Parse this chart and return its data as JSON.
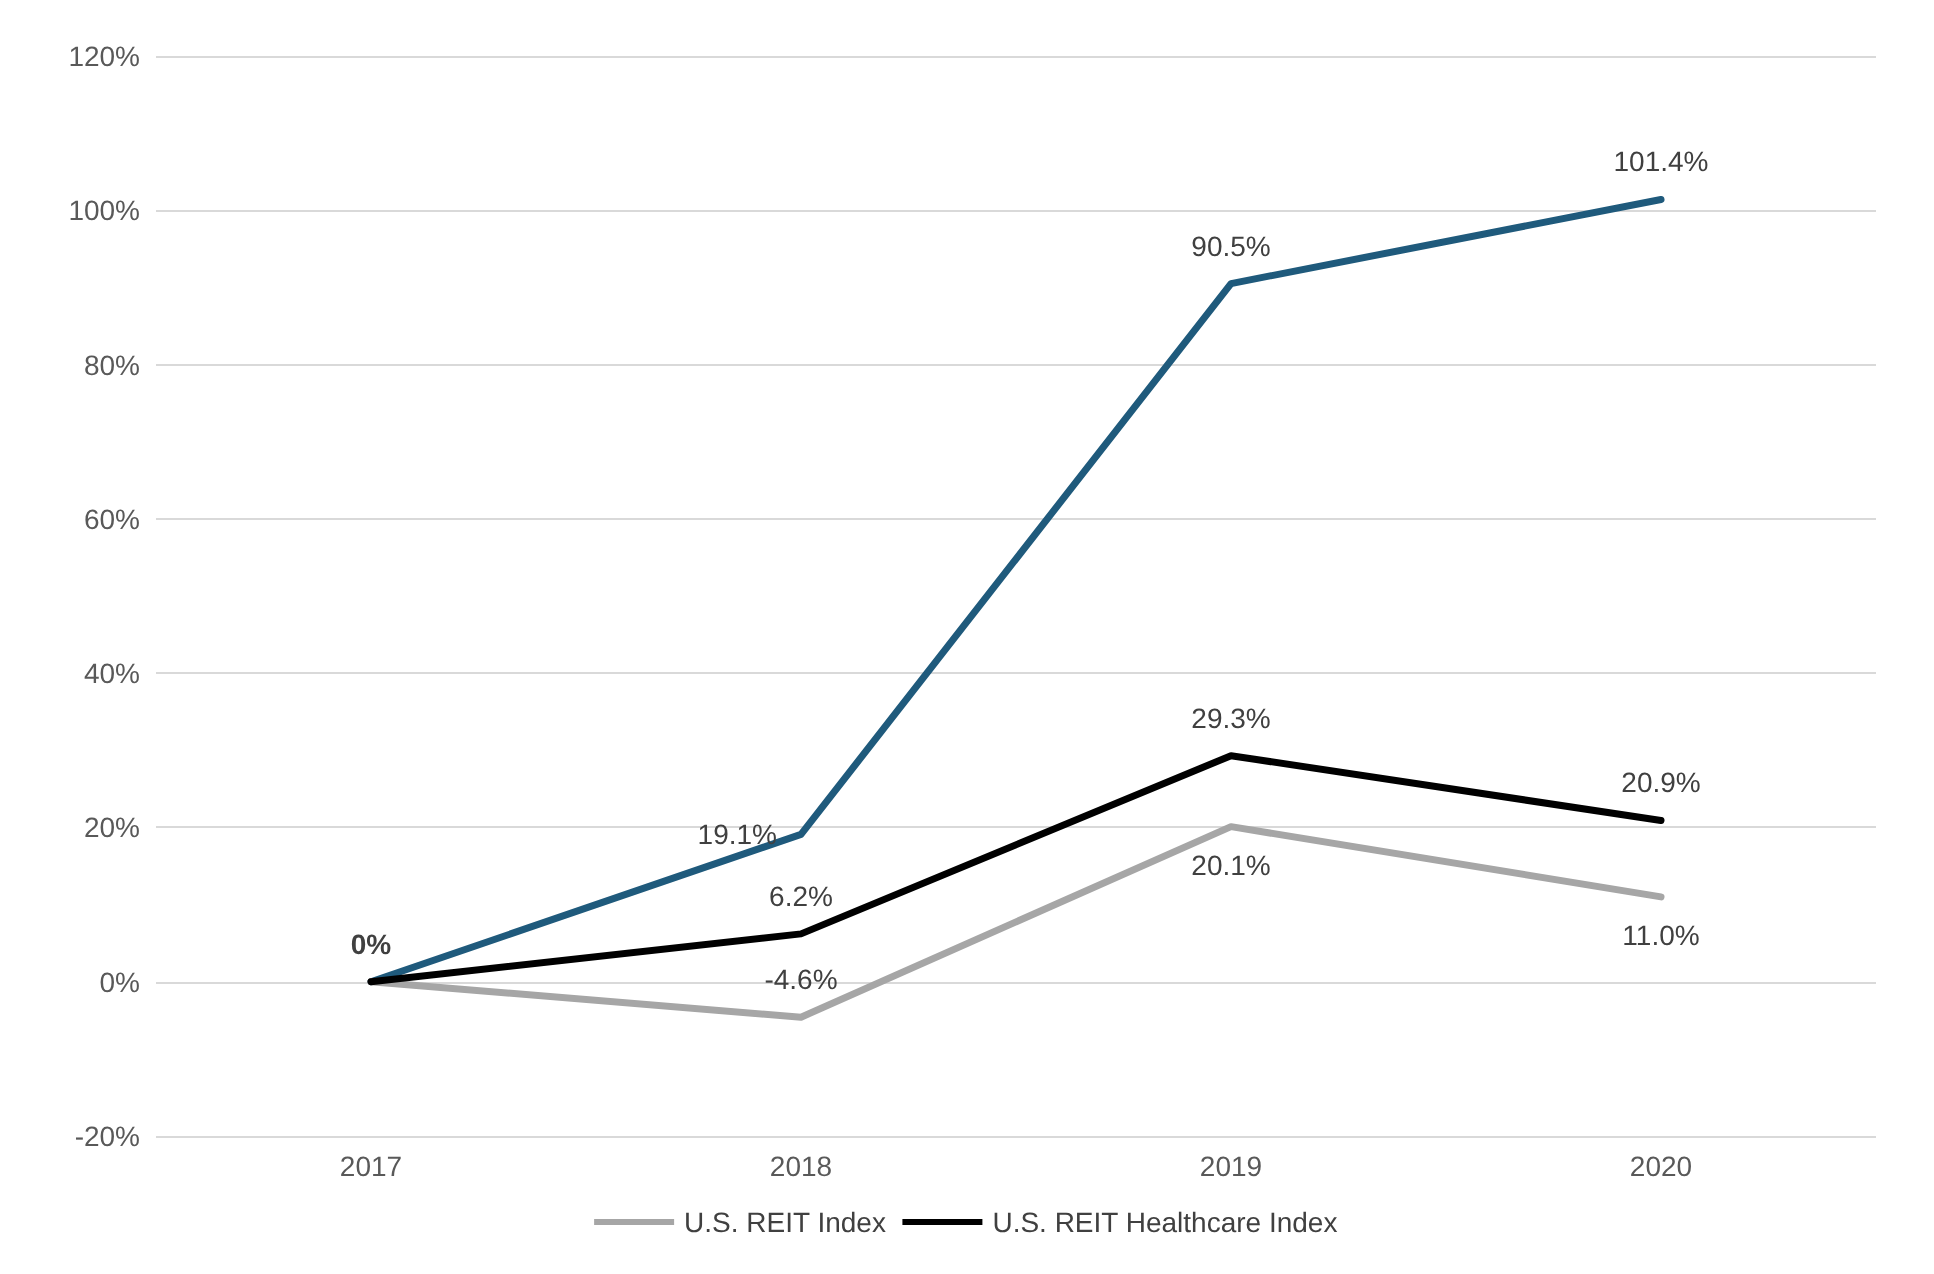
{
  "chart_data": {
    "type": "line",
    "categories": [
      "2017",
      "2018",
      "2019",
      "2020"
    ],
    "series": [
      {
        "color": "#1f5a7c",
        "values": [
          0,
          19.1,
          90.5,
          101.4
        ],
        "value_labels": [
          "0%",
          "19.1%",
          "90.5%",
          "101.4%"
        ]
      },
      {
        "name": "U.S. REIT Index",
        "color": "#a6a6a6",
        "values": [
          0,
          -4.6,
          20.1,
          11.0
        ],
        "value_labels": [
          null,
          "-4.6%",
          "20.1%",
          "11.0%"
        ]
      },
      {
        "name": "U.S. REIT Healthcare Index",
        "color": "#000000",
        "values": [
          0,
          6.2,
          29.3,
          20.9
        ],
        "value_labels": [
          null,
          "6.2%",
          "29.3%",
          "20.9%"
        ]
      }
    ],
    "ylim": [
      -20,
      120
    ],
    "yticks": [
      {
        "value": -20,
        "label": "-20%"
      },
      {
        "value": 0,
        "label": "0%"
      },
      {
        "value": 20,
        "label": "20%"
      },
      {
        "value": 40,
        "label": "40%"
      },
      {
        "value": 60,
        "label": "60%"
      },
      {
        "value": 80,
        "label": "80%"
      },
      {
        "value": 100,
        "label": "100%"
      },
      {
        "value": 120,
        "label": "120%"
      }
    ],
    "grid": "y",
    "legend": "bottom",
    "marker": "none",
    "line_style": "solid"
  }
}
